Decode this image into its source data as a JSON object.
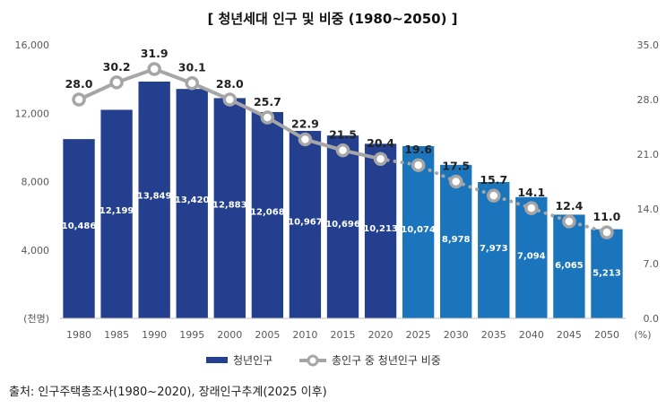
{
  "chart_data": {
    "type": "bar",
    "title": "[ 청년세대 인구 및 비중 (1980~2050) ]",
    "categories": [
      "1980",
      "1985",
      "1990",
      "1995",
      "2000",
      "2005",
      "2010",
      "2015",
      "2020",
      "2025",
      "2030",
      "2035",
      "2040",
      "2045",
      "2050"
    ],
    "series": [
      {
        "name": "청년인구",
        "type": "bar",
        "axis": "left",
        "values": [
          10486,
          12199,
          13849,
          13420,
          12883,
          12068,
          10967,
          10696,
          10213,
          10074,
          8978,
          7973,
          7094,
          6065,
          5213
        ],
        "labels": [
          "10,486",
          "12,199",
          "13,849",
          "13,420",
          "12,883",
          "12,068",
          "10,967",
          "10,696",
          "10,213",
          "10,074",
          "8,978",
          "7,973",
          "7,094",
          "6,065",
          "5,213"
        ]
      },
      {
        "name": "총인구 중 청년인구 비중",
        "type": "line",
        "axis": "right",
        "values": [
          28.0,
          30.2,
          31.9,
          30.1,
          28.0,
          25.7,
          22.9,
          21.5,
          20.4,
          19.6,
          17.5,
          15.7,
          14.1,
          12.4,
          11.0
        ],
        "labels": [
          "28.0",
          "30.2",
          "31.9",
          "30.1",
          "28.0",
          "25.7",
          "22.9",
          "21.5",
          "20.4",
          "19.6",
          "17.5",
          "15.7",
          "14.1",
          "12.4",
          "11.0"
        ]
      }
    ],
    "projection_start_index": 9,
    "y_left": {
      "range": [
        0,
        16000
      ],
      "ticks": [
        "(천명)",
        "4,000",
        "8,000",
        "12,000",
        "16,000"
      ],
      "unit": "(천명)"
    },
    "y_right": {
      "range": [
        0,
        35
      ],
      "ticks": [
        "0.0",
        "7.0",
        "14.0",
        "21.0",
        "28.0",
        "35.0"
      ],
      "unit": "(%)"
    },
    "colors": {
      "bar_actual": "#233F8E",
      "bar_projected": "#1B75BC",
      "line_actual": "#A6A6A6",
      "line_projected": "#A6A6A6"
    },
    "source": "출처: 인구주택총조사(1980~2020), 장래인구추계(2025 이후)"
  }
}
